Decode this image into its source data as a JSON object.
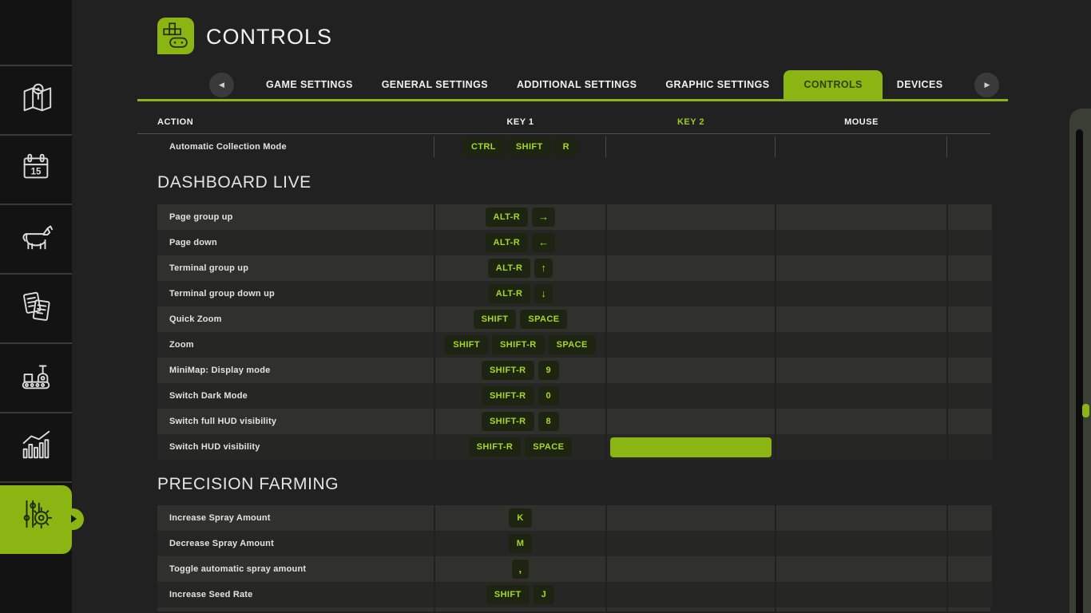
{
  "app": {
    "title": "CONTROLS"
  },
  "colors": {
    "accent_green": "#8ab513",
    "active_tab_text": "#32410c",
    "key_badge_bg": "#1d2412",
    "key_badge_text": "#a6d824",
    "row_light": "#30302d",
    "row_dark": "#262625",
    "page_bg": "#212121",
    "sidebar_bg": "#131313"
  },
  "icons": {
    "tab_prev": "◀",
    "tab_next": "▶"
  },
  "sidebar": {
    "items": [
      {
        "name": "map-icon",
        "active": false
      },
      {
        "name": "calendar-icon",
        "active": false
      },
      {
        "name": "animals-icon",
        "active": false
      },
      {
        "name": "contracts-icon",
        "active": false
      },
      {
        "name": "production-icon",
        "active": false
      },
      {
        "name": "statistics-icon",
        "active": false
      },
      {
        "name": "settings-icon",
        "active": true
      }
    ]
  },
  "tabs": {
    "items": [
      {
        "label": "GAME SETTINGS",
        "active": false
      },
      {
        "label": "GENERAL SETTINGS",
        "active": false
      },
      {
        "label": "ADDITIONAL SETTINGS",
        "active": false
      },
      {
        "label": "GRAPHIC SETTINGS",
        "active": false
      },
      {
        "label": "CONTROLS",
        "active": true
      },
      {
        "label": "DEVICES",
        "active": false
      }
    ]
  },
  "table": {
    "headers": {
      "action": "ACTION",
      "key1": "KEY 1",
      "key2": "KEY 2",
      "mouse": "MOUSE"
    },
    "sections": [
      {
        "title": "",
        "rows": [
          {
            "action": "Automatic Collection Mode",
            "key1": [
              "CTRL",
              "SHIFT",
              "R"
            ],
            "key2": [],
            "mouse": [],
            "plain": true
          }
        ]
      },
      {
        "title": "DASHBOARD LIVE",
        "rows": [
          {
            "action": "Page group up",
            "key1": [
              "ALT-R",
              "→"
            ],
            "key2": [],
            "mouse": []
          },
          {
            "action": "Page down",
            "key1": [
              "ALT-R",
              "←"
            ],
            "key2": [],
            "mouse": []
          },
          {
            "action": "Terminal group up",
            "key1": [
              "ALT-R",
              "↑"
            ],
            "key2": [],
            "mouse": []
          },
          {
            "action": "Terminal group down up",
            "key1": [
              "ALT-R",
              "↓"
            ],
            "key2": [],
            "mouse": []
          },
          {
            "action": "Quick Zoom",
            "key1": [
              "SHIFT",
              "SPACE"
            ],
            "key2": [],
            "mouse": []
          },
          {
            "action": "Zoom",
            "key1": [
              "SHIFT",
              "SHIFT-R",
              "SPACE"
            ],
            "key2": [],
            "mouse": []
          },
          {
            "action": "MiniMap: Display mode",
            "key1": [
              "SHIFT-R",
              "9"
            ],
            "key2": [],
            "mouse": []
          },
          {
            "action": "Switch Dark Mode",
            "key1": [
              "SHIFT-R",
              "0"
            ],
            "key2": [],
            "mouse": []
          },
          {
            "action": "Switch full HUD visibility",
            "key1": [
              "SHIFT-R",
              "8"
            ],
            "key2": [],
            "mouse": []
          },
          {
            "action": "Switch HUD visibility",
            "key1": [
              "SHIFT-R",
              "SPACE"
            ],
            "key2": [],
            "mouse": [],
            "key2_active_input": true
          }
        ]
      },
      {
        "title": "PRECISION FARMING",
        "rows": [
          {
            "action": "Increase Spray Amount",
            "key1": [
              "K"
            ],
            "key2": [],
            "mouse": []
          },
          {
            "action": "Decrease Spray Amount",
            "key1": [
              "M"
            ],
            "key2": [],
            "mouse": []
          },
          {
            "action": "Toggle automatic spray amount",
            "key1": [
              ","
            ],
            "key2": [],
            "mouse": []
          },
          {
            "action": "Increase Seed Rate",
            "key1": [
              "SHIFT",
              "J"
            ],
            "key2": [],
            "mouse": []
          }
        ]
      }
    ]
  }
}
